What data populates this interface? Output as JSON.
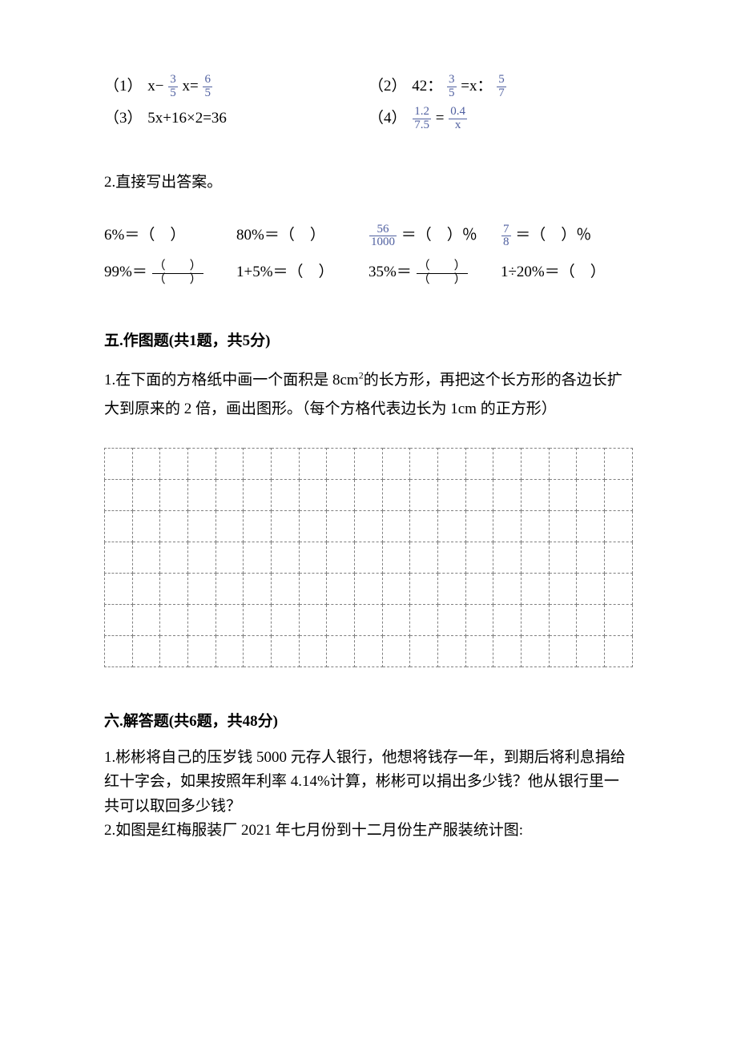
{
  "equations": {
    "r1c1": {
      "label": "（1）",
      "before": "x− ",
      "f1": {
        "n": "3",
        "d": "5"
      },
      "mid": " x= ",
      "f2": {
        "n": "6",
        "d": "5"
      }
    },
    "r1c2": {
      "label": "（2）",
      "before": "42：",
      "f1": {
        "n": "3",
        "d": "5"
      },
      "mid": " =x：",
      "f2": {
        "n": "5",
        "d": "7"
      }
    },
    "r2c1": {
      "label": "（3）",
      "txt": "5x+16×2=36"
    },
    "r2c2": {
      "label": "（4）",
      "f1": {
        "n": "1.2",
        "d": "7.5"
      },
      "mid": " = ",
      "f2": {
        "n": "0.4",
        "d": "x"
      }
    }
  },
  "q2heading": "2.直接写出答案。",
  "q2": {
    "a1": "6%＝（　）",
    "a2": "80%＝（　）",
    "a3_pre": "",
    "a3_f": {
      "n": "56",
      "d": "1000"
    },
    "a3_post": " ＝（　）％",
    "a4_f": {
      "n": "7",
      "d": "8"
    },
    "a4_txt": " ＝（　）％",
    "b1_pre": "99%＝",
    "b1_f": {
      "n": "（　　）",
      "d": "（　　）"
    },
    "b2": "1+5%＝（　）",
    "b3_pre": "35%＝",
    "b3_f": {
      "n": "（　　）",
      "d": "（　　）"
    },
    "b4": "1÷20%＝（　）"
  },
  "sec5": {
    "heading": "五.作图题(共1题，共5分)",
    "q1a": "1.在下面的方格纸中画一个面积是 8cm",
    "q1sup": "2",
    "q1b": "的长方形，再把这个长方形的各边长扩",
    "q1c": "大到原来的 2 倍，画出图形。（每个方格代表边长为 1cm 的正方形）"
  },
  "grid": {
    "rows": 7,
    "cols": 19
  },
  "sec6": {
    "heading": "六.解答题(共6题，共48分)",
    "q1a": "1.彬彬将自己的压岁钱 5000 元存人银行，他想将钱存一年，到期后将利息捐给",
    "q1b": "红十字会，如果按照年利率 4.14%计算，彬彬可以捐出多少钱？他从银行里一",
    "q1c": "共可以取回多少钱？",
    "q2": "2.如图是红梅服装厂 2021 年七月份到十二月份生产服装统计图:"
  }
}
